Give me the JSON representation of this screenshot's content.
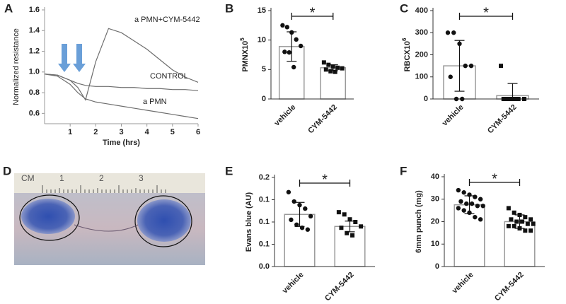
{
  "panels": [
    "A",
    "B",
    "C",
    "D",
    "E",
    "F"
  ],
  "photo": {
    "ruler_labels": [
      "CM",
      "1",
      "2",
      "3"
    ]
  },
  "chart_data": [
    {
      "type": "line",
      "xlabel": "Time (hrs)",
      "ylabel": "Normalized resistance",
      "x": [
        0,
        0.5,
        1,
        1.3,
        1.6,
        2,
        2.5,
        3,
        3.5,
        4,
        4.5,
        5,
        5.5,
        6
      ],
      "series": [
        {
          "name": "a PMN+CYM-5442",
          "color": "#6e6e6e",
          "values": [
            0.98,
            0.97,
            0.92,
            0.85,
            0.73,
            1.1,
            1.42,
            1.38,
            1.3,
            1.22,
            1.12,
            1.02,
            0.95,
            0.9
          ]
        },
        {
          "name": "CONTROL",
          "color": "#6e6e6e",
          "values": [
            0.98,
            0.97,
            0.92,
            0.89,
            0.87,
            0.86,
            0.86,
            0.85,
            0.85,
            0.84,
            0.84,
            0.83,
            0.83,
            0.82
          ]
        },
        {
          "name": "a PMN",
          "color": "#6e6e6e",
          "values": [
            0.98,
            0.96,
            0.88,
            0.8,
            0.74,
            0.71,
            0.69,
            0.67,
            0.65,
            0.63,
            0.61,
            0.59,
            0.57,
            0.55
          ]
        }
      ],
      "xlim": [
        0,
        6
      ],
      "xticks": [
        1,
        2,
        3,
        4,
        5,
        6
      ],
      "ylim": [
        0.5,
        1.6
      ],
      "yticks": [
        0.6,
        0.8,
        {
          "value": 1,
          "label": "1.0"
        },
        1.2,
        1.4,
        1.6
      ]
    },
    {
      "type": "bar",
      "ylabel": "PMNX10",
      "ylabel_sup": "5",
      "annotation": "*",
      "categories": [
        "vehicle",
        "CYM-5442"
      ],
      "values": [
        8.9,
        5.3
      ],
      "errors": [
        2.5,
        0.5
      ],
      "points": [
        [
          12.5,
          12.2,
          11.3,
          10.1,
          9.0,
          8.0,
          7.9,
          5.4
        ],
        [
          6.2,
          5.8,
          5.5,
          5.3,
          5.2,
          5.0,
          4.7,
          4.6
        ]
      ],
      "markers": [
        "circle",
        "square"
      ],
      "color": "#ffffff",
      "edge_color": "#9a9a9a",
      "ylim": [
        0,
        15
      ],
      "yticks": [
        0,
        5,
        10,
        15
      ]
    },
    {
      "type": "bar",
      "ylabel": "RBCX10",
      "ylabel_sup": "6",
      "annotation": "*",
      "categories": [
        "vehicle",
        "CYM-5442"
      ],
      "values": [
        150,
        15
      ],
      "errors": [
        115,
        55
      ],
      "points": [
        [
          300,
          300,
          250,
          150,
          150,
          100,
          0,
          0
        ],
        [
          150,
          0,
          0,
          0,
          0,
          0,
          0,
          0
        ]
      ],
      "markers": [
        "circle",
        "square"
      ],
      "color": "#ffffff",
      "edge_color": "#9a9a9a",
      "ylim": [
        0,
        400
      ],
      "yticks": [
        0,
        100,
        200,
        300,
        400
      ]
    },
    {
      "type": "bar",
      "ylabel": "Evans blue (AU)",
      "annotation": "*",
      "categories": [
        "vehicle",
        "CYM-5442"
      ],
      "values": [
        0.117,
        0.09
      ],
      "errors": [
        0.027,
        0.012
      ],
      "points": [
        [
          0.167,
          0.146,
          0.138,
          0.13,
          0.113,
          0.105,
          0.094,
          0.087,
          0.083
        ],
        [
          0.122,
          0.117,
          0.106,
          0.1,
          0.09,
          0.087,
          0.075,
          0.07
        ]
      ],
      "markers": [
        "circle",
        "square"
      ],
      "color": "#ffffff",
      "edge_color": "#9a9a9a",
      "ylim": [
        0,
        0.2
      ],
      "yticks": [
        {
          "value": 0,
          "label": "0.0"
        },
        {
          "value": 0.05,
          "label": "0.1"
        },
        0.1,
        {
          "value": 0.15,
          "label": "0.1"
        },
        0.2
      ]
    },
    {
      "type": "bar",
      "ylabel": "6mm punch (mg)",
      "annotation": "*",
      "categories": [
        "vehicle",
        "CYM-5442"
      ],
      "values": [
        27.5,
        20
      ],
      "errors": [
        4,
        3
      ],
      "points": [
        [
          34,
          33,
          32,
          31,
          30,
          29,
          28,
          28,
          27,
          27,
          26,
          25,
          24,
          22,
          21
        ],
        [
          26,
          24,
          23,
          22,
          21,
          21,
          20,
          20,
          19,
          19,
          18,
          18,
          17,
          16,
          16
        ]
      ],
      "markers": [
        "circle",
        "square"
      ],
      "color": "#ffffff",
      "edge_color": "#9a9a9a",
      "ylim": [
        0,
        40
      ],
      "yticks": [
        0,
        10,
        20,
        30,
        40
      ]
    }
  ]
}
